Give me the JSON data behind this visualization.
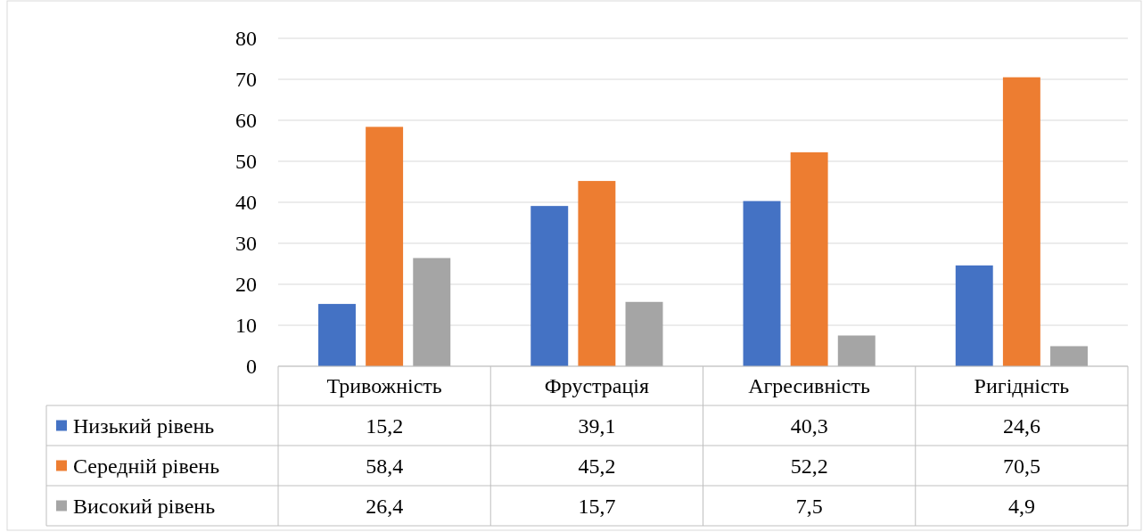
{
  "chart_data": {
    "type": "bar",
    "categories": [
      "Тривожність",
      "Фрустрація",
      "Агресивність",
      "Ригідність"
    ],
    "series": [
      {
        "name": "Низький рівень",
        "color": "#4472c4",
        "values": [
          15.2,
          39.1,
          40.3,
          24.6
        ],
        "value_labels": [
          "15,2",
          "39,1",
          "40,3",
          "24,6"
        ]
      },
      {
        "name": "Середній рівень",
        "color": "#ed7d31",
        "values": [
          58.4,
          45.2,
          52.2,
          70.5
        ],
        "value_labels": [
          "58,4",
          "45,2",
          "52,2",
          "70,5"
        ]
      },
      {
        "name": "Високий рівень",
        "color": "#a5a5a5",
        "values": [
          26.4,
          15.7,
          7.5,
          4.9
        ],
        "value_labels": [
          "26,4",
          "15,7",
          "7,5",
          "4,9"
        ]
      }
    ],
    "ylim": [
      0,
      80
    ],
    "yticks": [
      0,
      10,
      20,
      30,
      40,
      50,
      60,
      70,
      80
    ],
    "grid": "y",
    "legend": "bottom"
  }
}
